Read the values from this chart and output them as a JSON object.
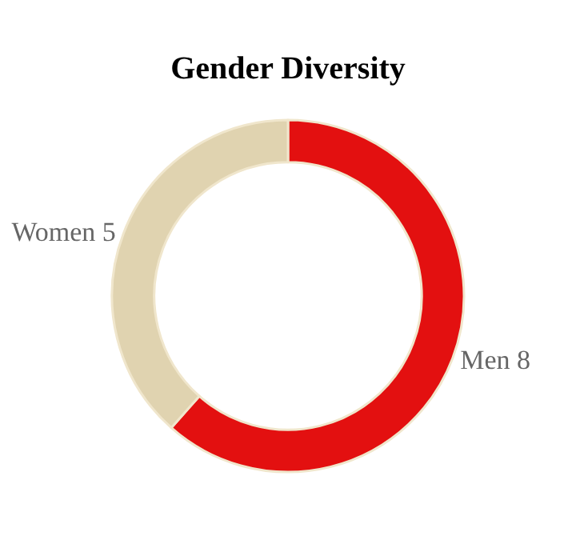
{
  "chart_data": {
    "type": "donut",
    "title": "Gender Diversity",
    "categories": [
      "Men",
      "Women"
    ],
    "values": [
      8,
      5
    ],
    "colors": [
      "#e31010",
      "#e0d3b0"
    ],
    "data_labels": true,
    "legend": false
  }
}
